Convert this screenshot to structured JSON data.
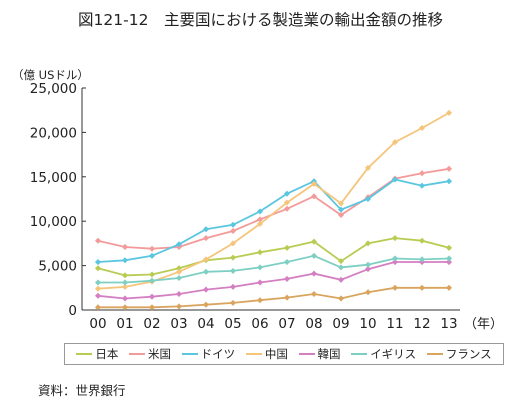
{
  "chart_data": {
    "type": "line",
    "title": "図121-12　主要国における製造業の輸出金額の推移",
    "ylabel": "（億 USドル）",
    "xlabel": "（年）",
    "ylim": [
      0,
      25000
    ],
    "yticks": [
      0,
      5000,
      10000,
      15000,
      20000,
      25000
    ],
    "ytick_labels": [
      "0",
      "5,000",
      "10,000",
      "15,000",
      "20,000",
      "25,000"
    ],
    "categories": [
      "00",
      "01",
      "02",
      "03",
      "04",
      "05",
      "06",
      "07",
      "08",
      "09",
      "10",
      "11",
      "12",
      "13"
    ],
    "grid": false,
    "legend_position": "bottom",
    "series": [
      {
        "name": "日本",
        "color": "#b8cc52",
        "values": [
          4700,
          3900,
          4000,
          4700,
          5600,
          5900,
          6500,
          7000,
          7700,
          5500,
          7500,
          8100,
          7800,
          7000
        ]
      },
      {
        "name": "米国",
        "color": "#f39a9a",
        "values": [
          7800,
          7100,
          6900,
          7100,
          8100,
          8900,
          10200,
          11400,
          12800,
          10700,
          12700,
          14800,
          15400,
          15900
        ]
      },
      {
        "name": "ドイツ",
        "color": "#5bc6e0",
        "values": [
          5400,
          5600,
          6100,
          7400,
          9100,
          9600,
          11100,
          13100,
          14500,
          11300,
          12500,
          14700,
          14000,
          14500
        ]
      },
      {
        "name": "中国",
        "color": "#f5c57b",
        "values": [
          2400,
          2600,
          3200,
          4300,
          5700,
          7500,
          9700,
          12100,
          14200,
          12000,
          16000,
          18900,
          20500,
          22200
        ]
      },
      {
        "name": "韓国",
        "color": "#d47fc2",
        "values": [
          1600,
          1300,
          1500,
          1800,
          2300,
          2600,
          3100,
          3500,
          4100,
          3400,
          4600,
          5400,
          5400,
          5400
        ]
      },
      {
        "name": "イギリス",
        "color": "#7ecfc3",
        "values": [
          3100,
          3100,
          3300,
          3600,
          4300,
          4400,
          4800,
          5400,
          6100,
          4800,
          5100,
          5800,
          5700,
          5800
        ]
      },
      {
        "name": "フランス",
        "color": "#d9a45e",
        "values": [
          300,
          300,
          300,
          400,
          600,
          800,
          1100,
          1400,
          1800,
          1300,
          2000,
          2500,
          2500,
          2500
        ]
      }
    ]
  },
  "source_label": "資料：世界銀行"
}
